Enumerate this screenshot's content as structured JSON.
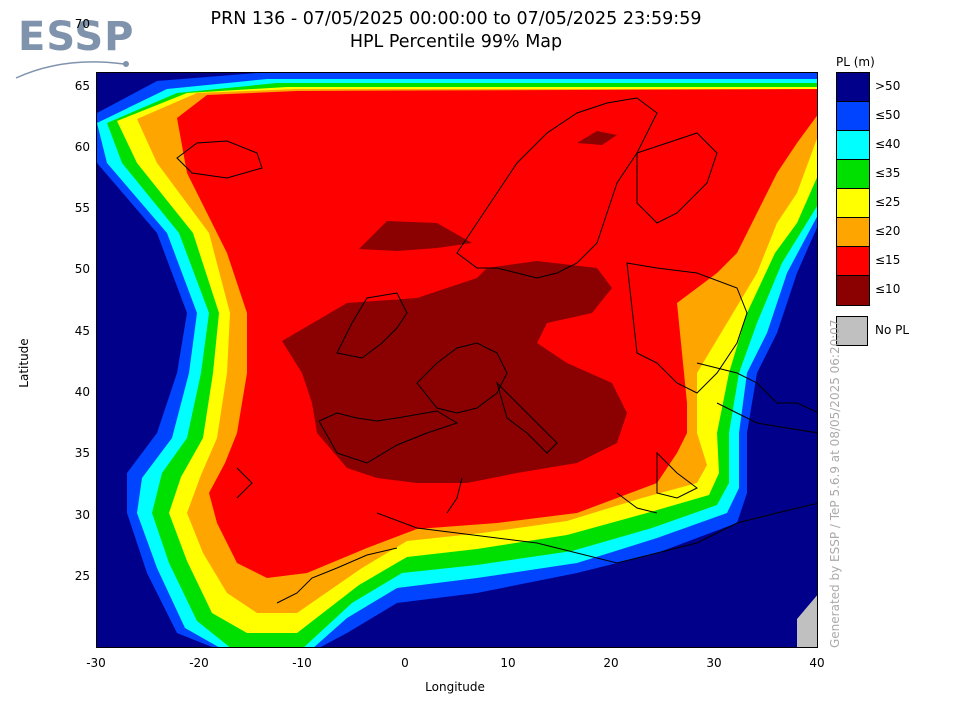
{
  "logo": {
    "text": "ESSP"
  },
  "title": {
    "line1": "PRN 136 - 07/05/2025 00:00:00 to 07/05/2025 23:59:59",
    "line2": "HPL Percentile 99% Map"
  },
  "axes": {
    "xlabel": "Longitude",
    "ylabel": "Latitude",
    "xticks": [
      "-30",
      "-20",
      "-10",
      "0",
      "10",
      "20",
      "30",
      "40"
    ],
    "yticks": [
      "70",
      "65",
      "60",
      "55",
      "50",
      "45",
      "40",
      "35",
      "30",
      "25"
    ],
    "xlim": [
      -30,
      40
    ],
    "ylim": [
      25,
      72
    ]
  },
  "legend": {
    "title": "PL (m)",
    "items": [
      {
        "label": ">50",
        "color": "#00008b"
      },
      {
        "label": "≤50",
        "color": "#0044ff"
      },
      {
        "label": "≤40",
        "color": "#00ffff"
      },
      {
        "label": "≤35",
        "color": "#00e000"
      },
      {
        "label": "≤25",
        "color": "#ffff00"
      },
      {
        "label": "≤20",
        "color": "#ffa500"
      },
      {
        "label": "≤15",
        "color": "#ff0000"
      },
      {
        "label": "≤10",
        "color": "#8b0000"
      }
    ],
    "nopl": {
      "label": "No PL",
      "color": "#c0c0c0"
    }
  },
  "credit": "Generated by ESSP / TeP 5.6.9 at 08/05/2025 06:20:07"
}
